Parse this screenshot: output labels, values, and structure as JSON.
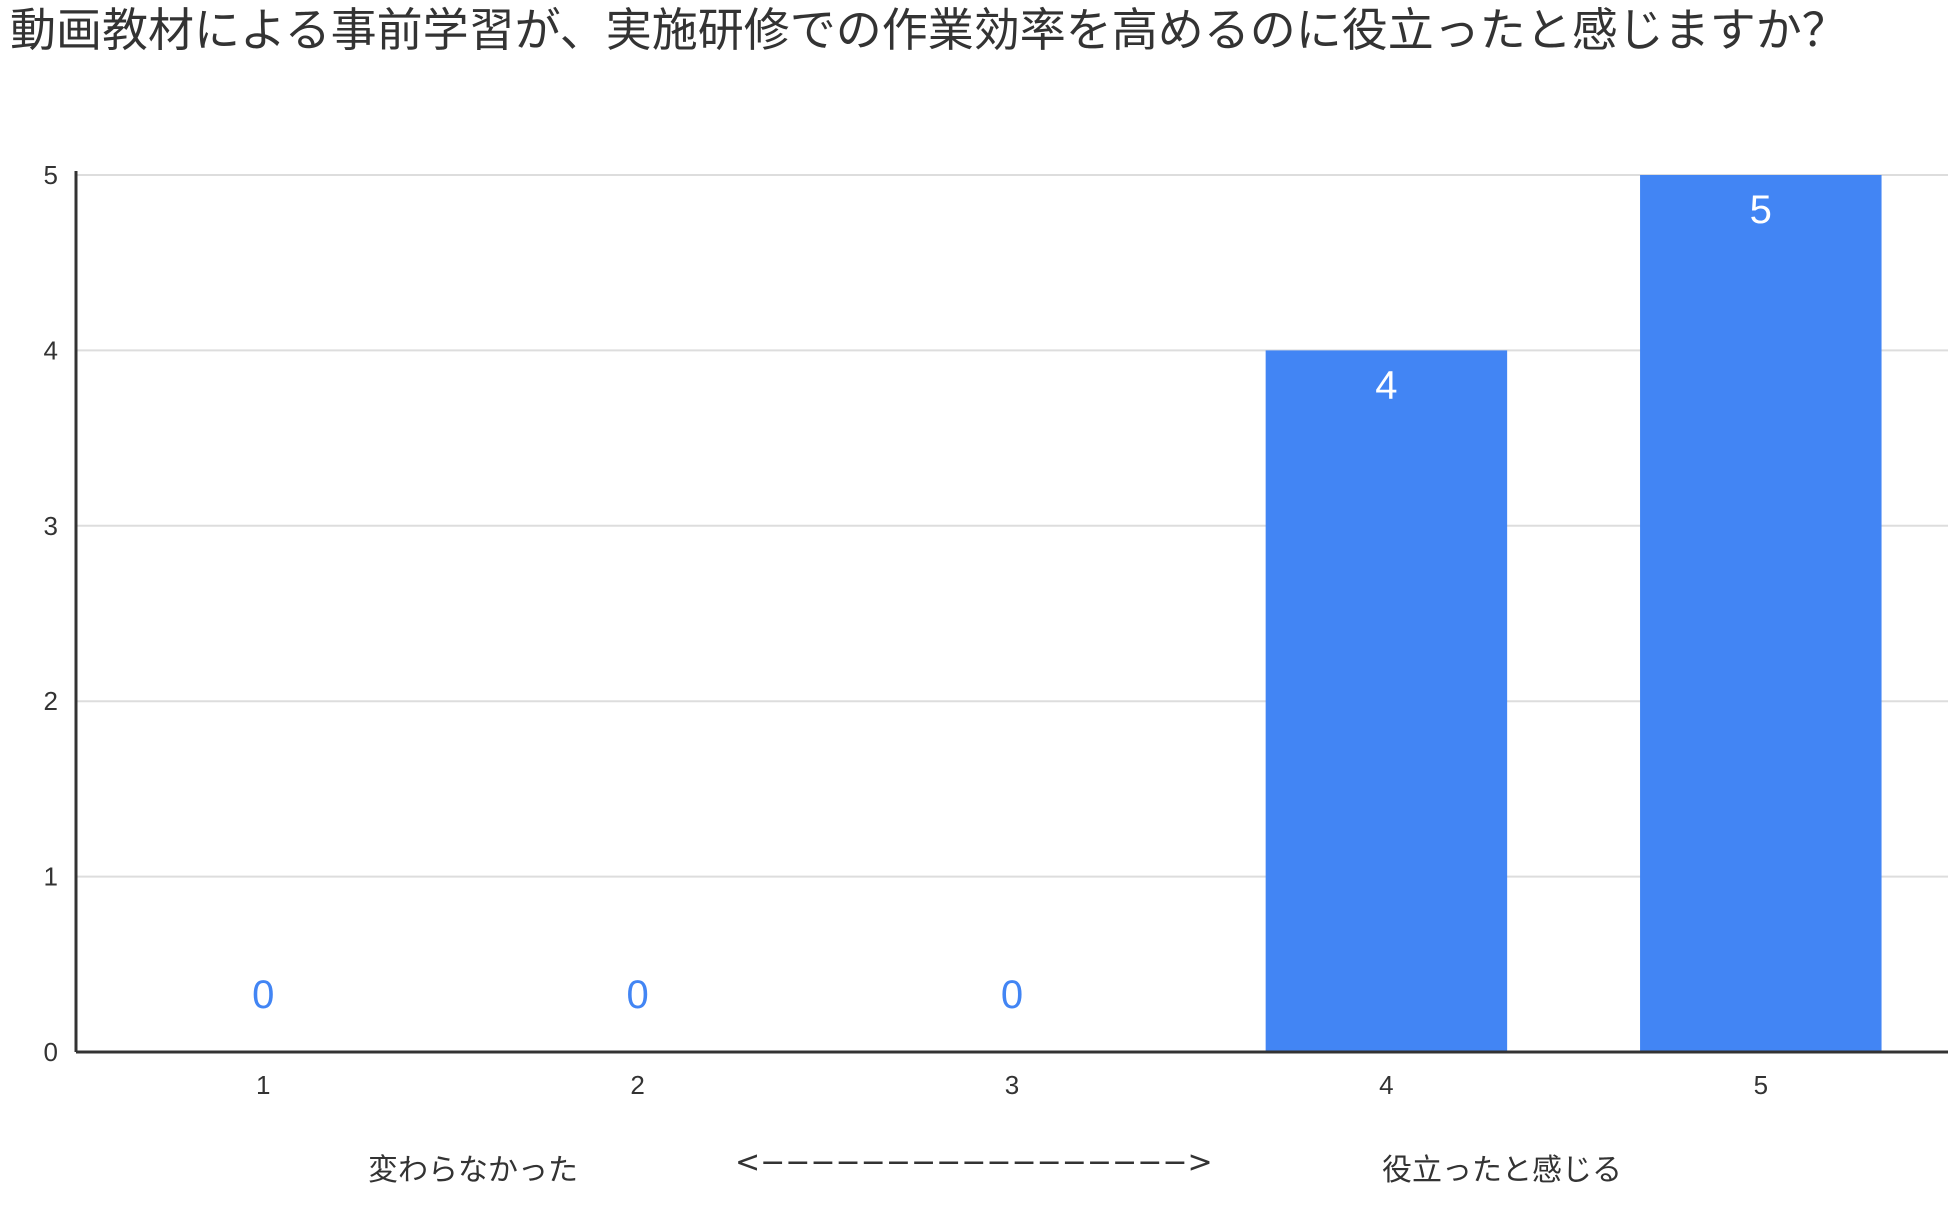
{
  "title": "動画教材による事前学習が、実施研修での作業効率を高めるのに役立ったと感じますか？",
  "scale_labels": {
    "low": "変わらなかった",
    "arrow": "<−−−−−−−−−−−−−−−−−>",
    "high": "役立ったと感じる"
  },
  "chart_data": {
    "type": "bar",
    "categories": [
      "1",
      "2",
      "3",
      "4",
      "5"
    ],
    "values": [
      0,
      0,
      0,
      4,
      5
    ],
    "data_labels": [
      "0",
      "0",
      "0",
      "4",
      "5"
    ],
    "y_ticks": [
      "0",
      "1",
      "2",
      "3",
      "4",
      "5"
    ],
    "ylim": [
      0,
      5
    ],
    "grid": true,
    "legend": "none",
    "colors": {
      "bar": "#4285f4",
      "label_inside": "#ffffff",
      "label_zero": "#4285f4",
      "grid": "#dddddd",
      "axis": "#333333"
    }
  }
}
